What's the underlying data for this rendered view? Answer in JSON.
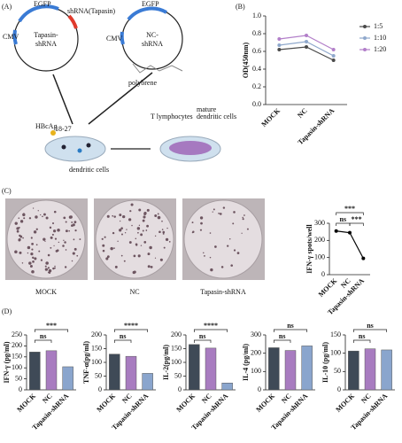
{
  "panel_labels": [
    "(A)",
    "(B)",
    "(C)",
    "(D)"
  ],
  "diagram": {
    "egfp_1": "EGFP",
    "shrna_tapasin": "shRNA(Tapasin)",
    "plasmid_1": [
      "Tapasin-",
      "shRNA"
    ],
    "cmv_1": "CMV",
    "egfp_2": "EGFP",
    "plasmid_2": [
      "NC-",
      "shRNA"
    ],
    "cmv_2": "CMV",
    "polybrene": "polybrene",
    "hbcag": "HBcAg",
    "hbcag_sub": "18-27",
    "t_lymphocytes": "T lymphocytes",
    "mature_dc": [
      "mature",
      "dendritic cells"
    ],
    "dendritic_cells": "dendritic cells"
  },
  "photos": {
    "labels": [
      "MOCK",
      "NC",
      "Tapasin-shRNA"
    ]
  },
  "chart_data": [
    {
      "type": "line",
      "y_label": "OD(450nm)",
      "categories": [
        "MOCK",
        "NC",
        "Tapasin-shRNA"
      ],
      "series": [
        {
          "name": "1:5",
          "color": "#4a4a4a",
          "values": [
            0.62,
            0.65,
            0.5
          ]
        },
        {
          "name": "1:10",
          "color": "#8fa8cc",
          "values": [
            0.67,
            0.71,
            0.55
          ]
        },
        {
          "name": "1:20",
          "color": "#b27fc9",
          "values": [
            0.74,
            0.78,
            0.62
          ]
        }
      ],
      "ylim": [
        0,
        1
      ],
      "yticks": [
        {
          "value": 0,
          "label": "0.0"
        },
        0.2,
        0.4,
        0.6,
        0.8,
        {
          "value": 1,
          "label": "1.0"
        }
      ],
      "legend": "right"
    },
    {
      "type": "line",
      "y_label": "IFN-γ spots/well",
      "categories": [
        "MOCK",
        "NC",
        "Tapasin-shRNA"
      ],
      "series": [
        {
          "color": "#000000",
          "values": [
            255,
            245,
            95
          ]
        }
      ],
      "ylim": [
        0,
        300
      ],
      "yticks": [
        0,
        100,
        200,
        300
      ],
      "annotations": [
        "***",
        "ns",
        "***"
      ]
    },
    {
      "type": "bar",
      "y_label": "IFN-γ (pg/ml)",
      "categories": [
        "MOCK",
        "NC",
        "Tapasin-shRNA"
      ],
      "values": [
        172,
        178,
        105
      ],
      "colors": [
        "#3f4a57",
        "#a87cc0",
        "#8aa5cd"
      ],
      "ylim": [
        0,
        250
      ],
      "yticks": [
        0,
        50,
        100,
        150,
        200,
        250
      ],
      "annotations": [
        "ns",
        "***"
      ]
    },
    {
      "type": "bar",
      "y_label": "TNF-α(pg/ml)",
      "categories": [
        "MOCK",
        "NC",
        "Tapasin-shRNA"
      ],
      "values": [
        130,
        122,
        60
      ],
      "colors": [
        "#3f4a57",
        "#a87cc0",
        "#8aa5cd"
      ],
      "ylim": [
        0,
        200
      ],
      "yticks": [
        0,
        50,
        100,
        150,
        200
      ],
      "annotations": [
        "ns",
        "****"
      ]
    },
    {
      "type": "bar",
      "y_label": "IL-2(pg/ml)",
      "categories": [
        "MOCK",
        "NC",
        "Tapasin-shRNA"
      ],
      "values": [
        165,
        152,
        25
      ],
      "colors": [
        "#3f4a57",
        "#a87cc0",
        "#8aa5cd"
      ],
      "ylim": [
        0,
        200
      ],
      "yticks": [
        0,
        50,
        100,
        150,
        200
      ],
      "annotations": [
        "ns",
        "****"
      ]
    },
    {
      "type": "bar",
      "y_label": "IL-4 (pg/ml)",
      "categories": [
        "MOCK",
        "NC",
        "Tapasin-shRNA"
      ],
      "values": [
        230,
        215,
        240
      ],
      "colors": [
        "#3f4a57",
        "#a87cc0",
        "#8aa5cd"
      ],
      "ylim": [
        0,
        300
      ],
      "yticks": [
        0,
        100,
        200,
        300
      ],
      "annotations": [
        "ns",
        "ns"
      ]
    },
    {
      "type": "bar",
      "y_label": "IL-10 (pg/ml)",
      "categories": [
        "MOCK",
        "NC",
        "Tapasin-shRNA"
      ],
      "values": [
        106,
        112,
        109
      ],
      "colors": [
        "#3f4a57",
        "#a87cc0",
        "#8aa5cd"
      ],
      "ylim": [
        0,
        150
      ],
      "yticks": [
        0,
        50,
        100,
        150
      ],
      "annotations": [
        "ns",
        "ns"
      ]
    }
  ]
}
